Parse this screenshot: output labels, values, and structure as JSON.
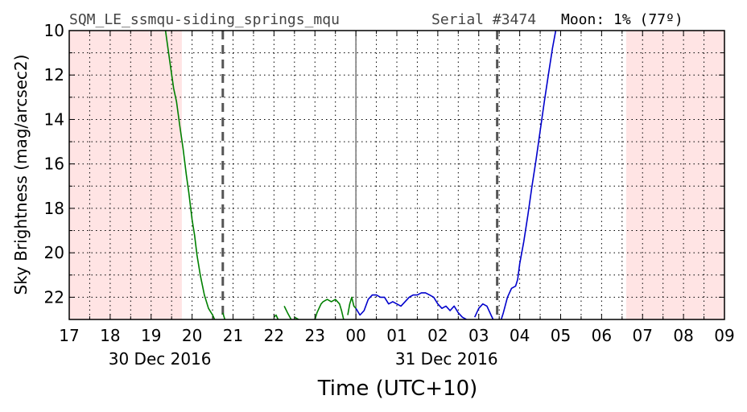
{
  "header": {
    "station": "SQM_LE_ssmqu-siding_springs_mqu",
    "serial": "Serial #3474",
    "moon": "Moon: 1% (77º)"
  },
  "chart_data": {
    "type": "line",
    "xlabel": "Time (UTC+10)",
    "ylabel": "Sky Brightness (mag/arcsec2)",
    "x_range_hours": [
      17,
      33
    ],
    "ylim": [
      10,
      23
    ],
    "y_inverted": true,
    "x_tick_labels": [
      "17",
      "18",
      "19",
      "20",
      "21",
      "22",
      "23",
      "00",
      "01",
      "02",
      "03",
      "04",
      "05",
      "06",
      "07",
      "08",
      "09"
    ],
    "y_tick_labels": [
      "10",
      "12",
      "14",
      "16",
      "18",
      "20",
      "22"
    ],
    "y_ticks": [
      10,
      12,
      14,
      16,
      18,
      20,
      22
    ],
    "date_labels": [
      {
        "label": "30 Dec 2016",
        "hour": 20
      },
      {
        "label": "31 Dec 2016",
        "hour": 27
      }
    ],
    "grid": true,
    "shaded_daytime_hours": [
      [
        17,
        19.75
      ],
      [
        30.6,
        33
      ]
    ],
    "dashed_vertical_lines_hours": [
      20.75,
      27.45
    ],
    "midnight_line_hour": 24,
    "series": [
      {
        "color": "#008000",
        "points": [
          [
            19.35,
            10
          ],
          [
            19.45,
            11.3
          ],
          [
            19.55,
            12.6
          ],
          [
            19.62,
            13.2
          ],
          [
            19.7,
            14.3
          ],
          [
            19.78,
            15.3
          ],
          [
            19.86,
            16.5
          ],
          [
            19.92,
            17.3
          ],
          [
            20.0,
            18.5
          ],
          [
            20.06,
            19.2
          ],
          [
            20.12,
            20.1
          ],
          [
            20.2,
            21.0
          ],
          [
            20.3,
            21.9
          ],
          [
            20.4,
            22.5
          ],
          [
            20.5,
            22.8
          ],
          [
            20.55,
            23.0
          ],
          [
            null,
            null
          ],
          [
            20.75,
            22.7
          ],
          [
            20.8,
            23.0
          ],
          [
            null,
            null
          ],
          [
            22.0,
            22.9
          ],
          [
            22.05,
            22.8
          ],
          [
            22.1,
            23.0
          ],
          [
            null,
            null
          ],
          [
            22.25,
            22.4
          ],
          [
            22.33,
            22.7
          ],
          [
            22.42,
            23.0
          ],
          [
            null,
            null
          ],
          [
            22.5,
            22.9
          ],
          [
            22.6,
            23.0
          ],
          [
            null,
            null
          ],
          [
            23.0,
            23.0
          ],
          [
            23.05,
            22.7
          ],
          [
            23.1,
            22.5
          ],
          [
            23.15,
            22.3
          ],
          [
            23.2,
            22.2
          ],
          [
            23.3,
            22.1
          ],
          [
            23.4,
            22.2
          ],
          [
            23.5,
            22.1
          ],
          [
            23.6,
            22.3
          ],
          [
            23.65,
            22.6
          ],
          [
            23.7,
            23.0
          ],
          [
            null,
            null
          ],
          [
            23.8,
            22.8
          ],
          [
            23.85,
            22.3
          ],
          [
            23.9,
            22.0
          ],
          [
            23.95,
            22.4
          ],
          [
            24.0,
            22.5
          ]
        ]
      },
      {
        "color": "#0000cc",
        "points": [
          [
            24.0,
            22.5
          ],
          [
            24.1,
            22.8
          ],
          [
            24.2,
            22.6
          ],
          [
            24.3,
            22.1
          ],
          [
            24.4,
            21.9
          ],
          [
            24.5,
            21.9
          ],
          [
            24.6,
            22.0
          ],
          [
            24.7,
            22.0
          ],
          [
            24.8,
            22.3
          ],
          [
            24.9,
            22.2
          ],
          [
            25.0,
            22.3
          ],
          [
            25.1,
            22.4
          ],
          [
            25.2,
            22.2
          ],
          [
            25.3,
            22.0
          ],
          [
            25.4,
            21.9
          ],
          [
            25.5,
            21.9
          ],
          [
            25.6,
            21.8
          ],
          [
            25.7,
            21.8
          ],
          [
            25.8,
            21.9
          ],
          [
            25.9,
            22.0
          ],
          [
            26.0,
            22.3
          ],
          [
            26.1,
            22.5
          ],
          [
            26.2,
            22.4
          ],
          [
            26.3,
            22.6
          ],
          [
            26.4,
            22.4
          ],
          [
            26.5,
            22.7
          ],
          [
            26.6,
            22.9
          ],
          [
            26.7,
            23.0
          ],
          [
            null,
            null
          ],
          [
            26.9,
            22.9
          ],
          [
            27.0,
            22.5
          ],
          [
            27.1,
            22.3
          ],
          [
            27.2,
            22.4
          ],
          [
            27.3,
            22.8
          ],
          [
            27.35,
            23.0
          ],
          [
            null,
            null
          ],
          [
            27.55,
            23.0
          ],
          [
            27.6,
            22.7
          ],
          [
            27.7,
            22.0
          ],
          [
            27.8,
            21.6
          ],
          [
            27.9,
            21.5
          ],
          [
            27.95,
            21.2
          ],
          [
            28.0,
            20.5
          ],
          [
            28.1,
            19.5
          ],
          [
            28.2,
            18.3
          ],
          [
            28.3,
            17.0
          ],
          [
            28.4,
            15.8
          ],
          [
            28.5,
            14.5
          ],
          [
            28.6,
            13.2
          ],
          [
            28.7,
            12.0
          ],
          [
            28.8,
            10.8
          ],
          [
            28.88,
            10.0
          ]
        ]
      }
    ]
  }
}
